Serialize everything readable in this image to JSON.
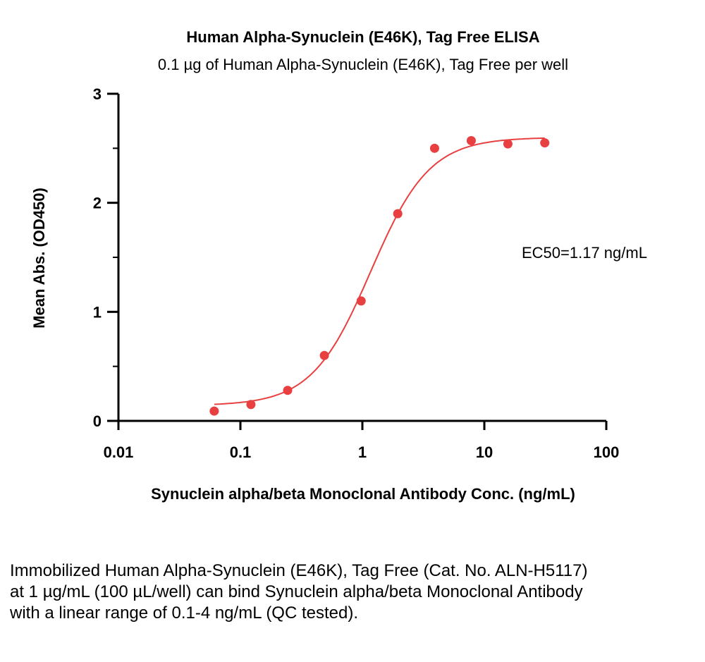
{
  "chart_data": {
    "type": "scatter",
    "title": "Human Alpha-Synuclein (E46K), Tag Free ELISA",
    "subtitle": "0.1 µg of Human Alpha-Synuclein (E46K), Tag Free per well",
    "xlabel": "Synuclein alpha/beta Monoclonal Antibody Conc. (ng/mL)",
    "ylabel": "Mean Abs. (OD450)",
    "xscale": "log",
    "xlim": [
      0.01,
      100
    ],
    "ylim": [
      0,
      3
    ],
    "xticks": [
      0.01,
      0.1,
      1,
      10,
      100
    ],
    "xtick_labels": [
      "0.01",
      "0.1",
      "1",
      "10",
      "100"
    ],
    "yticks": [
      0,
      1,
      2,
      3
    ],
    "ytick_labels": [
      "0",
      "1",
      "2",
      "3"
    ],
    "series": [
      {
        "x": [
          0.061,
          0.122,
          0.244,
          0.488,
          0.977,
          1.95,
          3.91,
          7.81,
          15.6,
          31.3
        ],
        "y": [
          0.09,
          0.15,
          0.28,
          0.6,
          1.1,
          1.9,
          2.5,
          2.57,
          2.54,
          2.55
        ]
      }
    ],
    "fit": {
      "bottom": 0.14,
      "top": 2.6,
      "ec50": 1.17,
      "hill": 1.8
    },
    "annotation": "EC50=1.17 ng/mL",
    "color": "#e84040",
    "grid": false
  },
  "caption": "Immobilized Human Alpha-Synuclein (E46K), Tag Free (Cat. No. ALN-H5117) at 1 µg/mL (100 µL/well) can bind Synuclein alpha/beta Monoclonal Antibody with a linear range of 0.1-4 ng/mL (QC tested)."
}
